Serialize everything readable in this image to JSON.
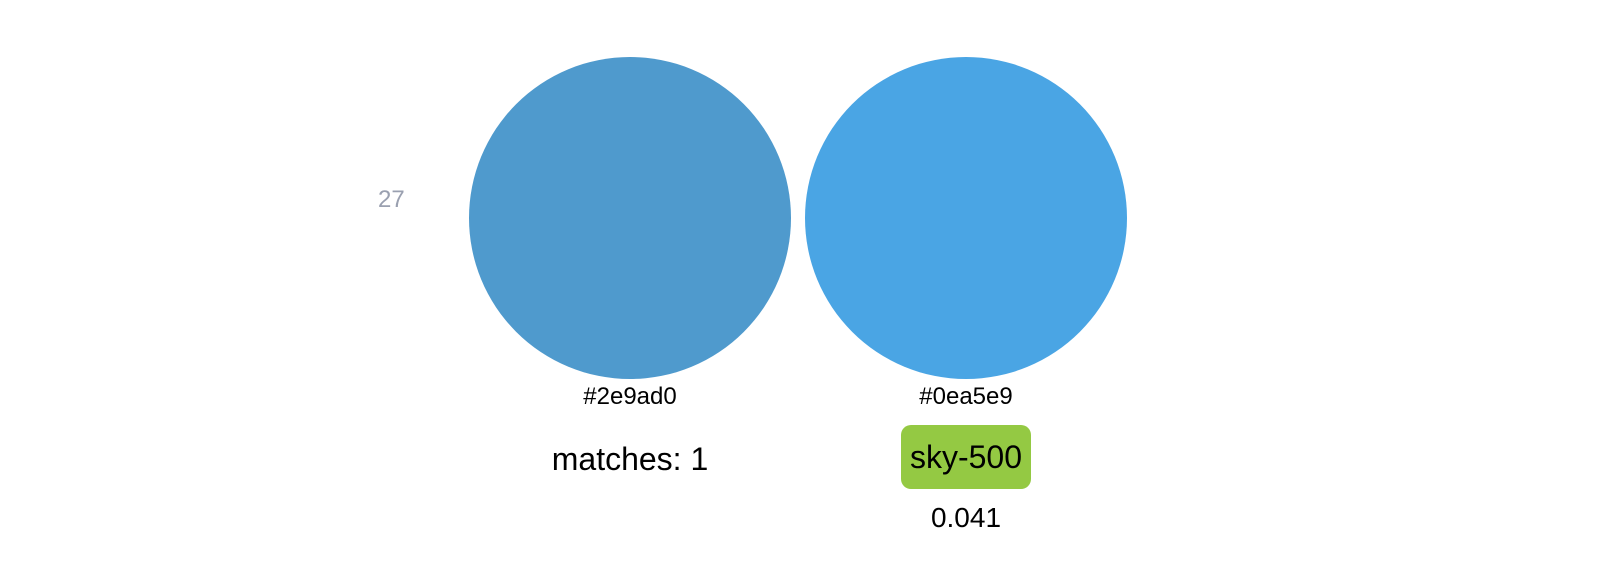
{
  "row": {
    "index": "27"
  },
  "input_swatch": {
    "hex": "#2e9ad0",
    "color": "#4f9acd",
    "matches_text": "matches: 1"
  },
  "match_swatch": {
    "hex": "#0ea5e9",
    "color": "#4aa5e4",
    "name": "sky-500",
    "badge_color": "#94c943",
    "distance": "0.041"
  }
}
